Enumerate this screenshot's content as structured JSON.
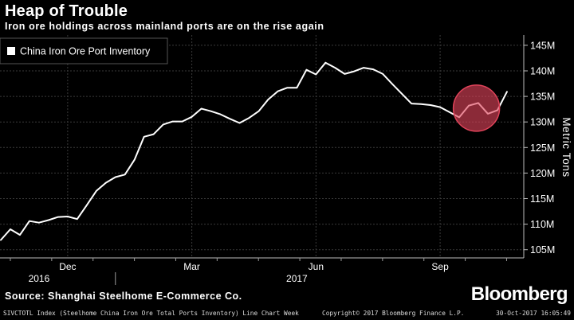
{
  "header": {
    "title": "Heap of Trouble",
    "subtitle": "Iron ore holdings across mainland ports are on the rise again"
  },
  "footer": {
    "source": "Source: Shanghai Steelhome E-Commerce Co.",
    "brand": "Bloomberg",
    "index_info": "SIVCTOTL Index (Steelhome China Iron Ore Total Ports Inventory) Line Chart Week",
    "copyright": "Copyright© 2017 Bloomberg Finance L.P.",
    "timestamp": "30-Oct-2017 16:05:49"
  },
  "colors": {
    "background": "#000000",
    "line": "#ffffff",
    "grid": "#3a3a3a",
    "highlight": "#e0435a"
  },
  "chart_data": {
    "type": "line",
    "legend": {
      "label": "China Iron Ore Port Inventory",
      "placement": "top-left"
    },
    "ylabel": "Metric Tons",
    "ylim": [
      104,
      147
    ],
    "yticks": [
      {
        "value": 105,
        "label": "105M"
      },
      {
        "value": 110,
        "label": "110M"
      },
      {
        "value": 115,
        "label": "115M"
      },
      {
        "value": 120,
        "label": "120M"
      },
      {
        "value": 125,
        "label": "125M"
      },
      {
        "value": 130,
        "label": "130M"
      },
      {
        "value": 135,
        "label": "135M"
      },
      {
        "value": 140,
        "label": "140M"
      },
      {
        "value": 145,
        "label": "145M"
      }
    ],
    "xticks": [
      {
        "week": 7,
        "label": "Dec"
      },
      {
        "week": 20,
        "label": "Mar"
      },
      {
        "week": 33,
        "label": "Jun"
      },
      {
        "week": 46,
        "label": "Sep"
      }
    ],
    "year_labels": [
      {
        "week": 4,
        "label": "2016"
      },
      {
        "week": 31,
        "label": "2017"
      }
    ],
    "x_range": [
      0,
      53.5
    ],
    "grid": true,
    "series": [
      {
        "name": "China Iron Ore Port Inventory",
        "values": [
          106.9,
          109.0,
          107.9,
          110.6,
          110.3,
          110.8,
          111.4,
          111.5,
          111.0,
          113.7,
          116.5,
          118.1,
          119.2,
          119.7,
          122.6,
          127.1,
          127.6,
          129.5,
          130.1,
          130.1,
          131.0,
          132.6,
          132.1,
          131.5,
          130.6,
          129.8,
          130.8,
          132.1,
          134.4,
          136.0,
          136.7,
          136.7,
          140.2,
          139.3,
          141.6,
          140.6,
          139.4,
          139.9,
          140.6,
          140.3,
          139.4,
          137.4,
          135.5,
          133.6,
          133.5,
          133.3,
          132.9,
          131.9,
          130.9,
          133.2,
          133.7,
          131.6,
          132.3,
          135.9
        ]
      }
    ],
    "annotations": [
      {
        "type": "highlight-circle",
        "week_center": 49.8,
        "value_center": 132.7
      }
    ]
  }
}
